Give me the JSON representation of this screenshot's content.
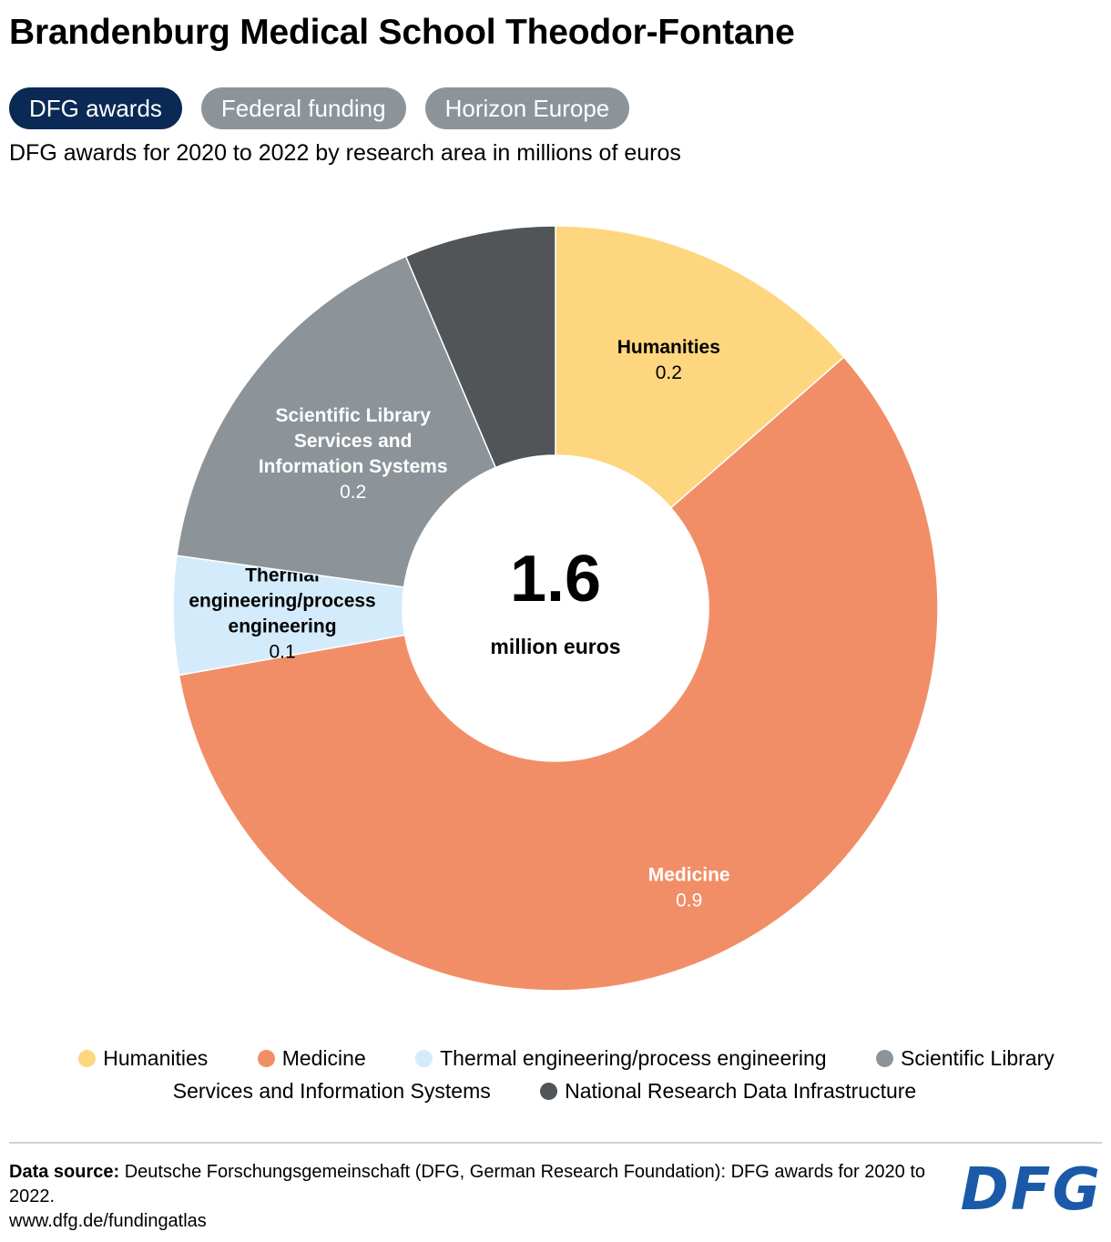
{
  "title": "Brandenburg Medical School Theodor-Fontane",
  "tabs": [
    {
      "label": "DFG awards",
      "active": true
    },
    {
      "label": "Federal funding",
      "active": false
    },
    {
      "label": "Horizon Europe",
      "active": false
    }
  ],
  "subtitle": "DFG awards for 2020 to 2022 by research area in millions of euros",
  "chart_data": {
    "type": "pie",
    "style": "donut",
    "title": "DFG awards for 2020 to 2022 by research area in millions of euros",
    "center_value": "1.6",
    "center_label": "million euros",
    "slices": [
      {
        "name": "Humanities",
        "value": 0.2,
        "share": 0.136,
        "value_label": "0.2",
        "label_lines": [
          "Humanities"
        ],
        "color": "#fed680",
        "label_color": "#000000"
      },
      {
        "name": "Medicine",
        "value": 0.9,
        "share": 0.586,
        "value_label": "0.9",
        "label_lines": [
          "Medicine"
        ],
        "color": "#f28e67",
        "label_color": "#ffffff"
      },
      {
        "name": "Thermal engineering/process engineering",
        "value": 0.1,
        "share": 0.05,
        "value_label": "0.1",
        "label_lines": [
          "Thermal",
          "engineering/process",
          "engineering"
        ],
        "color": "#d4ebfb",
        "label_color": "#000000"
      },
      {
        "name": "Scientific Library Services and Information Systems",
        "value": 0.2,
        "share": 0.164,
        "value_label": "0.2",
        "label_lines": [
          "Scientific Library",
          "Services and",
          "Information Systems"
        ],
        "color": "#8d9499",
        "label_color": "#ffffff"
      },
      {
        "name": "National Research Data Infrastructure",
        "value": 0.1,
        "share": 0.064,
        "value_label": "",
        "label_lines": [],
        "color": "#515558",
        "label_color": "#ffffff"
      }
    ],
    "legend_placement": "bottom"
  },
  "legend": [
    {
      "label": "Humanities",
      "color": "#fed680"
    },
    {
      "label": "Medicine",
      "color": "#f28e67"
    },
    {
      "label": "Thermal engineering/process engineering",
      "color": "#d4ebfb"
    },
    {
      "label": "Scientific Library Services and Information Systems",
      "color": "#8d9499"
    },
    {
      "label": "National Research Data Infrastructure",
      "color": "#515558"
    }
  ],
  "footer": {
    "source_label": "Data source:",
    "source_text": "Deutsche Forschungsgemeinschaft (DFG, German Research Foundation): DFG awards for 2020 to 2022.",
    "url": "www.dfg.de/fundingatlas",
    "logo_text": "DFG"
  }
}
